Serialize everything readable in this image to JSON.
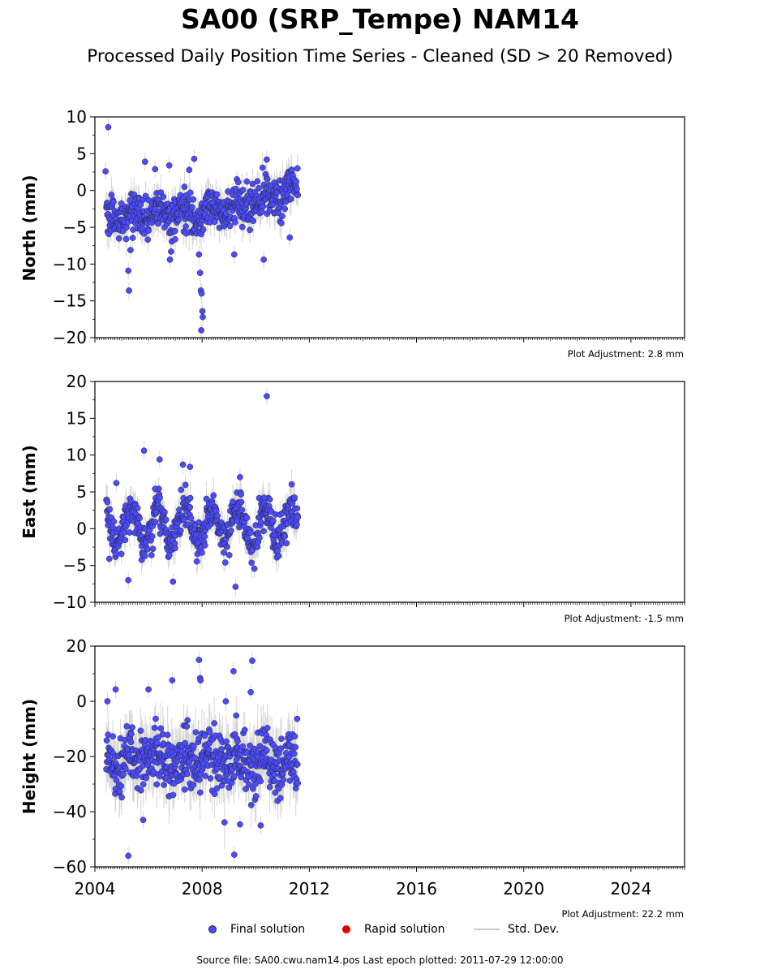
{
  "header": {
    "title": "SA00 (SRP_Tempe) NAM14",
    "subtitle": "Processed Daily Position Time Series - Cleaned (SD > 20 Removed)"
  },
  "legend": {
    "final": "Final solution",
    "rapid": "Rapid solution",
    "stddev": "Std. Dev."
  },
  "footer": {
    "text": "Source file: SA00.cwu.nam14.pos  Last epoch plotted: 2011-07-29 12:00:00"
  },
  "colors": {
    "final": "#4b4bff",
    "rapid": "#dd0000",
    "stddev": "#c8c8c8",
    "marker_edge": "#222222"
  },
  "chart_data": [
    {
      "type": "scatter",
      "ylabel": "North (mm)",
      "ylim": [
        -20,
        10
      ],
      "yticks": [
        -20,
        -15,
        -10,
        -5,
        0,
        5,
        10
      ],
      "adjustment": "Plot Adjustment: 2.8 mm",
      "x_range": [
        "2004-01-01",
        "2026-01-01"
      ],
      "data_span": [
        "2004-06-05",
        "2011-07-29"
      ],
      "center_band": [
        -3.5,
        0.5
      ],
      "seasonal_amplitude": 1.0,
      "noise_sd": 1.3,
      "outliers": [
        {
          "x": "2004-07-01",
          "y": 8.6
        },
        {
          "x": "2004-05-25",
          "y": 2.6
        },
        {
          "x": "2005-04-01",
          "y": -10.9
        },
        {
          "x": "2005-04-10",
          "y": -13.6
        },
        {
          "x": "2005-05-01",
          "y": -8.1
        },
        {
          "x": "2005-11-15",
          "y": 3.9
        },
        {
          "x": "2006-04-01",
          "y": 2.9
        },
        {
          "x": "2006-10-10",
          "y": 3.4
        },
        {
          "x": "2006-10-20",
          "y": -9.4
        },
        {
          "x": "2006-11-05",
          "y": -8.3
        },
        {
          "x": "2007-07-10",
          "y": 2.8
        },
        {
          "x": "2007-09-15",
          "y": 4.3
        },
        {
          "x": "2007-11-20",
          "y": -8.7
        },
        {
          "x": "2007-12-05",
          "y": -11.2
        },
        {
          "x": "2007-12-15",
          "y": -13.6
        },
        {
          "x": "2007-12-25",
          "y": -14.0
        },
        {
          "x": "2008-01-05",
          "y": -16.4
        },
        {
          "x": "2008-01-10",
          "y": -17.2
        },
        {
          "x": "2007-12-20",
          "y": -19.0
        },
        {
          "x": "2009-03-15",
          "y": -8.7
        },
        {
          "x": "2010-04-20",
          "y": -9.4
        },
        {
          "x": "2010-06-01",
          "y": 4.2
        },
        {
          "x": "2011-04-10",
          "y": -6.4
        }
      ]
    },
    {
      "type": "scatter",
      "ylabel": "East (mm)",
      "ylim": [
        -10,
        20
      ],
      "yticks": [
        -10,
        -5,
        0,
        5,
        10,
        15,
        20
      ],
      "adjustment": "Plot Adjustment: -1.5 mm",
      "x_range": [
        "2004-01-01",
        "2026-01-01"
      ],
      "data_span": [
        "2004-06-05",
        "2011-07-29"
      ],
      "center_band": [
        0.5,
        0.5
      ],
      "seasonal_amplitude": 2.4,
      "noise_sd": 1.3,
      "outliers": [
        {
          "x": "2004-07-15",
          "y": -4.1
        },
        {
          "x": "2004-10-20",
          "y": 6.2
        },
        {
          "x": "2005-04-01",
          "y": -7.0
        },
        {
          "x": "2005-11-01",
          "y": 10.6
        },
        {
          "x": "2006-04-01",
          "y": 5.4
        },
        {
          "x": "2006-06-01",
          "y": 9.4
        },
        {
          "x": "2007-04-15",
          "y": 8.7
        },
        {
          "x": "2007-07-20",
          "y": 8.4
        },
        {
          "x": "2006-12-01",
          "y": -7.2
        },
        {
          "x": "2009-04-01",
          "y": -7.9
        },
        {
          "x": "2009-06-01",
          "y": 7.0
        },
        {
          "x": "2010-06-01",
          "y": 18.0
        },
        {
          "x": "2010-04-25",
          "y": 4.2
        }
      ]
    },
    {
      "type": "scatter",
      "ylabel": "Height (mm)",
      "ylim": [
        -60,
        20
      ],
      "yticks": [
        -60,
        -40,
        -20,
        0,
        20
      ],
      "adjustment": "Plot Adjustment: 22.2 mm",
      "x_range": [
        "2004-01-01",
        "2026-01-01"
      ],
      "data_span": [
        "2004-06-05",
        "2011-07-29"
      ],
      "xticks": [
        "2004",
        "2008",
        "2012",
        "2016",
        "2020",
        "2024"
      ],
      "center_band": [
        -21,
        -23
      ],
      "seasonal_amplitude": 3.0,
      "noise_sd": 5.5,
      "outliers": [
        {
          "x": "2004-06-20",
          "y": 0.0
        },
        {
          "x": "2004-10-10",
          "y": 4.3
        },
        {
          "x": "2005-04-01",
          "y": -56.0
        },
        {
          "x": "2005-10-20",
          "y": -43.0
        },
        {
          "x": "2006-01-01",
          "y": 4.3
        },
        {
          "x": "2006-11-20",
          "y": 7.6
        },
        {
          "x": "2007-11-20",
          "y": 15.0
        },
        {
          "x": "2007-12-05",
          "y": 8.4
        },
        {
          "x": "2007-12-10",
          "y": 7.6
        },
        {
          "x": "2008-11-20",
          "y": 0.0
        },
        {
          "x": "2009-03-05",
          "y": 10.9
        },
        {
          "x": "2009-03-15",
          "y": -55.6
        },
        {
          "x": "2009-11-15",
          "y": 14.7
        },
        {
          "x": "2009-10-25",
          "y": 3.3
        },
        {
          "x": "2010-03-10",
          "y": -45.0
        },
        {
          "x": "2009-06-01",
          "y": -44.6
        }
      ]
    }
  ]
}
